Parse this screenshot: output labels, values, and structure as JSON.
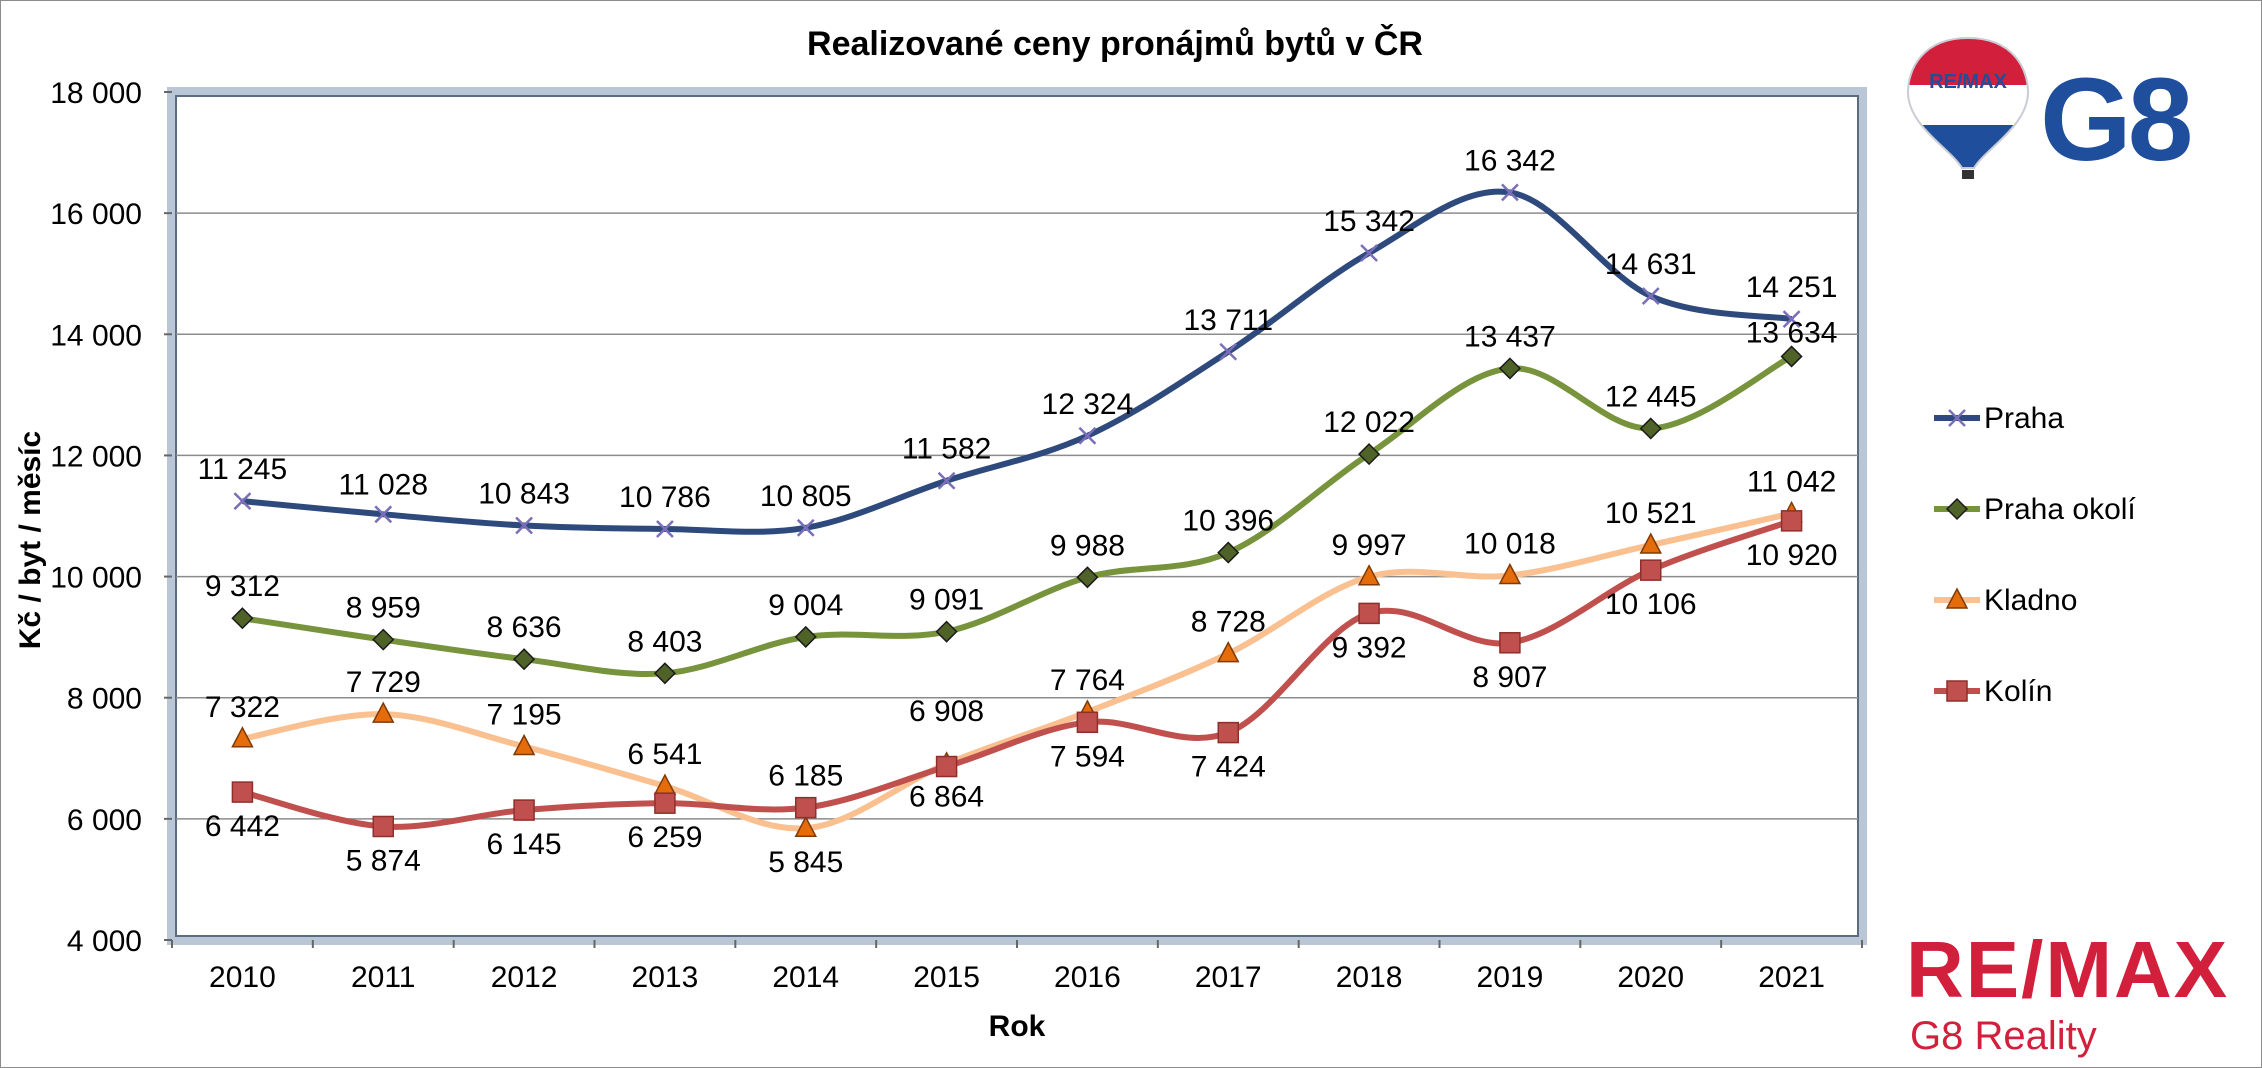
{
  "chart_data": {
    "type": "line",
    "title": "Realizované ceny pronájmů bytů v ČR",
    "xlabel": "Rok",
    "ylabel": "Kč / byt / měsíc",
    "categories": [
      "2010",
      "2011",
      "2012",
      "2013",
      "2014",
      "2015",
      "2016",
      "2017",
      "2018",
      "2019",
      "2020",
      "2021"
    ],
    "ylim": [
      4000,
      18000
    ],
    "yticks": [
      4000,
      6000,
      8000,
      10000,
      12000,
      14000,
      16000,
      18000
    ],
    "ytick_labels": [
      "4 000",
      "6 000",
      "8 000",
      "10 000",
      "12 000",
      "14 000",
      "16 000",
      "18 000"
    ],
    "grid": true,
    "legend_position": "right",
    "series": [
      {
        "name": "Praha",
        "color": "#2e4a7d",
        "marker": "x",
        "values": [
          11245,
          11028,
          10843,
          10786,
          10805,
          11582,
          12324,
          13711,
          15342,
          16342,
          14631,
          14251
        ],
        "labels": [
          "11 245",
          "11 028",
          "10 843",
          "10 786",
          "10 805",
          "11 582",
          "12 324",
          "13 711",
          "15 342",
          "16 342",
          "14 631",
          "14 251"
        ]
      },
      {
        "name": "Praha okolí",
        "color": "#77933c",
        "marker": "diamond",
        "values": [
          9312,
          8959,
          8636,
          8403,
          9004,
          9091,
          9988,
          10396,
          12022,
          13437,
          12445,
          13634
        ],
        "labels": [
          "9 312",
          "8 959",
          "8 636",
          "8 403",
          "9 004",
          "9 091",
          "9 988",
          "10 396",
          "12 022",
          "13 437",
          "12 445",
          "13 634"
        ]
      },
      {
        "name": "Kladno",
        "color": "#fac090",
        "marker": "triangle",
        "values": [
          7322,
          7729,
          7195,
          6541,
          5845,
          6908,
          7764,
          8728,
          9997,
          10018,
          10521,
          11042
        ],
        "labels": [
          "7 322",
          "7 729",
          "7 195",
          "6 541",
          "5 845",
          "6 908",
          "7 764",
          "8 728",
          "9 997",
          "10 018",
          "10 521",
          "11 042"
        ]
      },
      {
        "name": "Kolín",
        "color": "#c0504d",
        "marker": "square",
        "values": [
          6442,
          5874,
          6145,
          6259,
          6185,
          6864,
          7594,
          7424,
          9392,
          8907,
          10106,
          10920
        ],
        "labels": [
          "6 442",
          "5 874",
          "6 145",
          "6 259",
          "6 185",
          "6 864",
          "7 594",
          "7 424",
          "9 392",
          "8 907",
          "10 106",
          "10 920"
        ]
      }
    ]
  },
  "logos": {
    "top": {
      "balloon_text": "RE/MAX",
      "brand_text": "G8"
    },
    "bottom": {
      "brand_text": "RE/MAX",
      "subtitle": "G8 Reality"
    }
  },
  "colors": {
    "remax_red": "#d21f3c",
    "remax_blue": "#1f4e9c",
    "g8_blue": "#1f4e9c"
  }
}
